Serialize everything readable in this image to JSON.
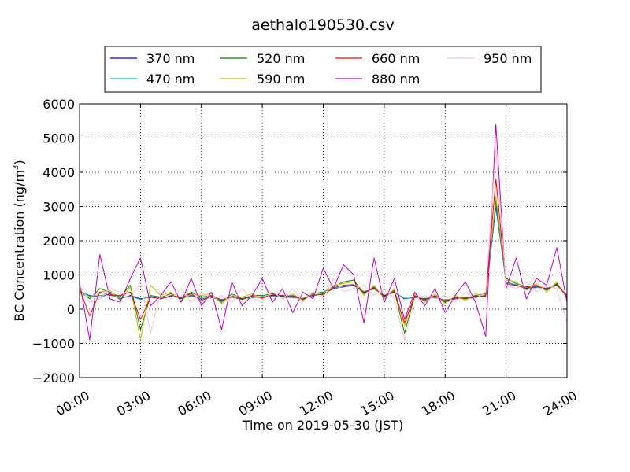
{
  "chart_data": {
    "type": "line",
    "title": "aethalo190530.csv",
    "xlabel": "Time on 2019-05-30 (JST)",
    "ylabel_main": "BC Concentration (ng/m",
    "ylabel_sup": "3",
    "ylabel_close": ")",
    "xlim": [
      0,
      24
    ],
    "ylim": [
      -2000,
      6000
    ],
    "grid": true,
    "legend_position": "top-center",
    "x_ticks": [
      0,
      3,
      6,
      9,
      12,
      15,
      18,
      21,
      24
    ],
    "x_tick_labels": [
      "00:00",
      "03:00",
      "06:00",
      "09:00",
      "12:00",
      "15:00",
      "18:00",
      "21:00",
      "24:00"
    ],
    "y_ticks": [
      -2000,
      -1000,
      0,
      1000,
      2000,
      3000,
      4000,
      5000,
      6000
    ],
    "y_tick_labels": [
      "−2000",
      "−1000",
      "0",
      "1000",
      "2000",
      "3000",
      "4000",
      "5000",
      "6000"
    ],
    "x": [
      0.0,
      0.5,
      1.0,
      1.5,
      2.0,
      2.5,
      3.0,
      3.5,
      4.0,
      4.5,
      5.0,
      5.5,
      6.0,
      6.5,
      7.0,
      7.5,
      8.0,
      8.5,
      9.0,
      9.5,
      10.0,
      10.5,
      11.0,
      11.5,
      12.0,
      12.5,
      13.0,
      13.5,
      14.0,
      14.5,
      15.0,
      15.5,
      16.0,
      16.5,
      17.0,
      17.5,
      18.0,
      18.5,
      19.0,
      19.5,
      20.0,
      20.5,
      21.0,
      21.5,
      22.0,
      22.5,
      23.0,
      23.5,
      24.0
    ],
    "series": [
      {
        "name": "370 nm",
        "color": "#0000ff",
        "values": [
          500,
          400,
          350,
          450,
          300,
          400,
          300,
          350,
          300,
          380,
          320,
          400,
          300,
          350,
          250,
          380,
          300,
          350,
          350,
          400,
          380,
          350,
          300,
          400,
          450,
          600,
          650,
          700,
          500,
          600,
          400,
          500,
          300,
          350,
          300,
          350,
          250,
          300,
          320,
          350,
          400,
          3000,
          800,
          700,
          600,
          650,
          600,
          700,
          400
        ]
      },
      {
        "name": "470 nm",
        "color": "#00bfbf",
        "values": [
          520,
          380,
          400,
          420,
          320,
          380,
          280,
          370,
          320,
          360,
          340,
          380,
          320,
          330,
          270,
          360,
          320,
          330,
          370,
          380,
          360,
          330,
          320,
          380,
          470,
          580,
          670,
          680,
          520,
          580,
          420,
          480,
          320,
          330,
          320,
          330,
          270,
          320,
          300,
          330,
          420,
          3100,
          780,
          720,
          580,
          630,
          620,
          680,
          420
        ]
      },
      {
        "name": "520 nm",
        "color": "#008000",
        "values": [
          550,
          300,
          600,
          500,
          350,
          700,
          -600,
          400,
          350,
          450,
          300,
          500,
          350,
          400,
          200,
          450,
          300,
          400,
          400,
          450,
          350,
          400,
          300,
          450,
          500,
          650,
          800,
          850,
          450,
          650,
          350,
          550,
          -700,
          400,
          250,
          400,
          200,
          350,
          300,
          400,
          450,
          3200,
          900,
          750,
          650,
          700,
          550,
          750,
          350
        ]
      },
      {
        "name": "590 nm",
        "color": "#bfbf00",
        "values": [
          450,
          350,
          500,
          550,
          250,
          650,
          -900,
          700,
          400,
          500,
          250,
          450,
          400,
          450,
          150,
          400,
          350,
          450,
          300,
          500,
          300,
          450,
          250,
          500,
          400,
          700,
          750,
          800,
          400,
          700,
          300,
          600,
          -500,
          450,
          200,
          450,
          150,
          400,
          250,
          450,
          350,
          3300,
          850,
          800,
          550,
          750,
          500,
          800,
          300
        ]
      },
      {
        "name": "660 nm",
        "color": "#ff0000",
        "values": [
          600,
          -200,
          500,
          400,
          400,
          500,
          -300,
          350,
          300,
          400,
          350,
          450,
          250,
          380,
          280,
          350,
          280,
          380,
          330,
          420,
          400,
          380,
          280,
          420,
          430,
          620,
          700,
          720,
          480,
          620,
          380,
          520,
          -400,
          380,
          280,
          380,
          230,
          330,
          330,
          380,
          380,
          3800,
          750,
          680,
          620,
          680,
          580,
          720,
          380
        ]
      },
      {
        "name": "880 nm",
        "color": "#bf00bf",
        "values": [
          800,
          -900,
          1600,
          300,
          200,
          900,
          1500,
          100,
          400,
          800,
          200,
          900,
          100,
          500,
          -600,
          800,
          100,
          400,
          900,
          200,
          600,
          -100,
          500,
          300,
          1200,
          600,
          1300,
          1000,
          -400,
          1500,
          200,
          900,
          -300,
          500,
          100,
          600,
          -100,
          400,
          800,
          200,
          -800,
          5400,
          600,
          1500,
          300,
          900,
          700,
          1800,
          200
        ]
      },
      {
        "name": "950 nm",
        "color": "#ffc0cb",
        "values": [
          700,
          200,
          300,
          600,
          500,
          300,
          800,
          -700,
          500,
          300,
          600,
          200,
          500,
          300,
          400,
          200,
          600,
          300,
          200,
          500,
          300,
          600,
          200,
          500,
          300,
          900,
          500,
          600,
          700,
          400,
          600,
          300,
          -900,
          300,
          400,
          300,
          400,
          200,
          500,
          300,
          500,
          4700,
          700,
          600,
          800,
          500,
          700,
          600,
          -400
        ]
      }
    ]
  }
}
